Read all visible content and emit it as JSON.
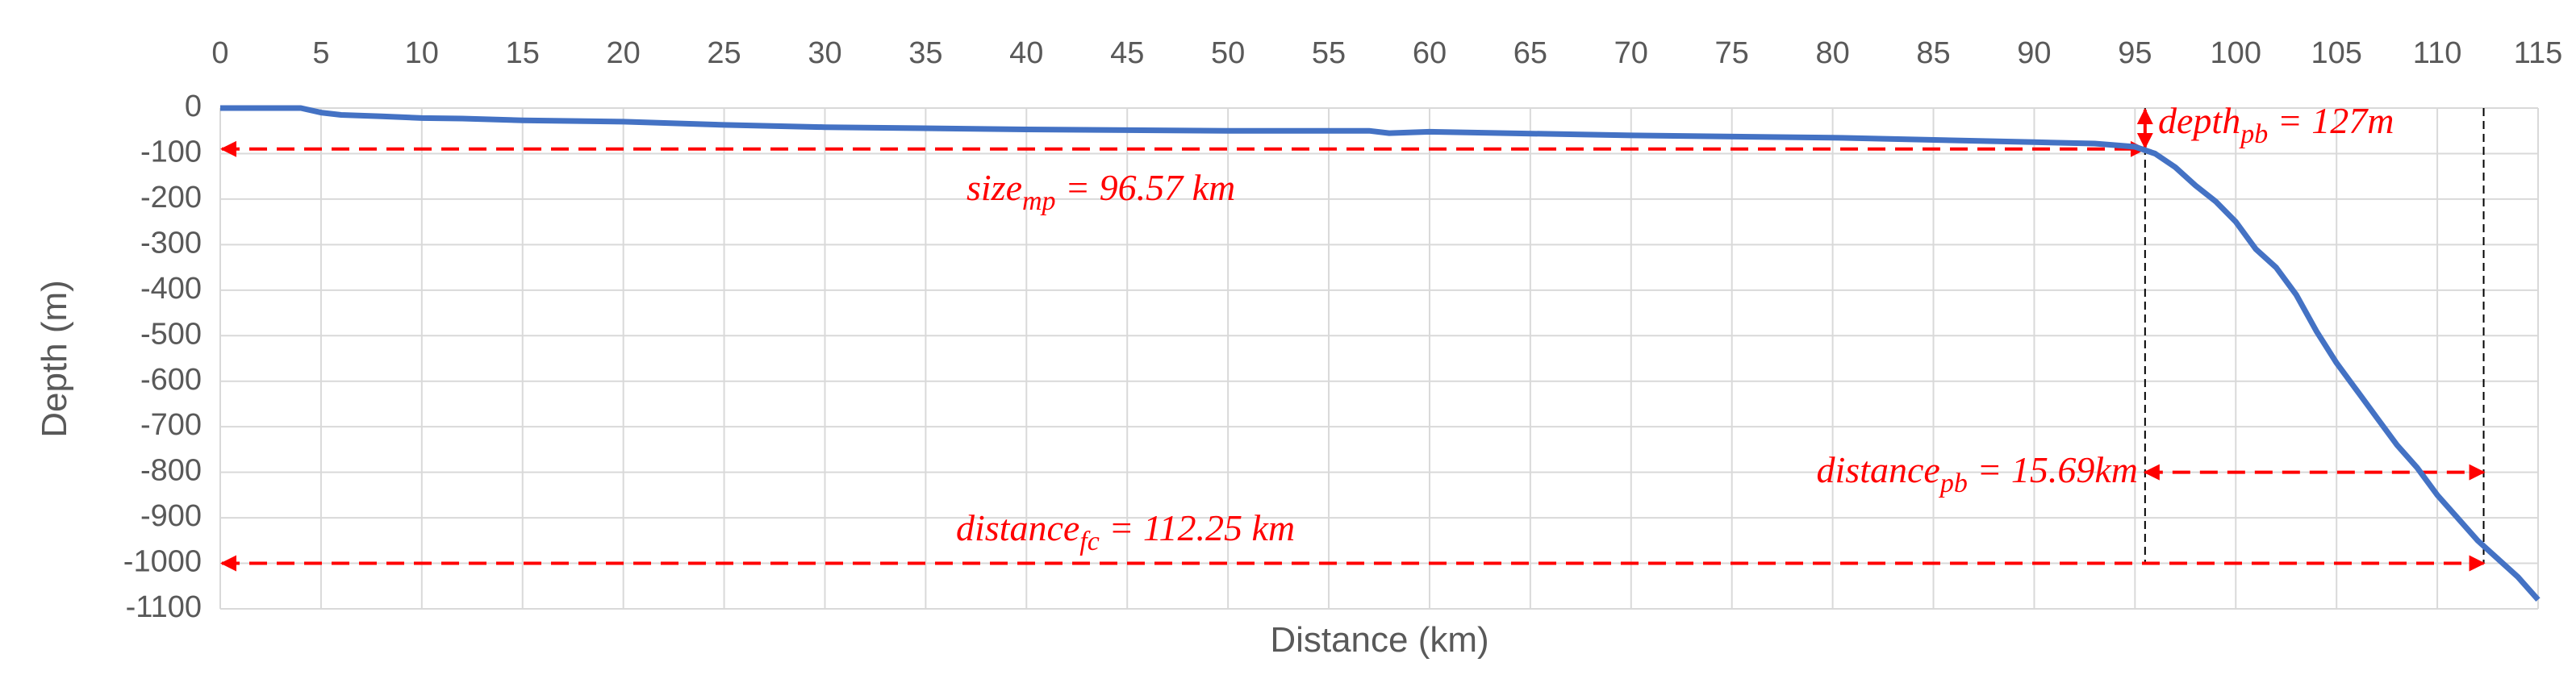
{
  "chart_data": {
    "type": "line",
    "x_label": "Distance (km)",
    "y_label": "Depth (m)",
    "xlim": [
      0,
      115
    ],
    "xticks": [
      0,
      5,
      10,
      15,
      20,
      25,
      30,
      35,
      40,
      45,
      50,
      55,
      60,
      65,
      70,
      75,
      80,
      85,
      90,
      95,
      100,
      105,
      110,
      115
    ],
    "ylim": [
      -1100,
      0
    ],
    "yticks": [
      0,
      -100,
      -200,
      -300,
      -400,
      -500,
      -600,
      -700,
      -800,
      -900,
      -1000,
      -1100
    ],
    "grid": true,
    "series": [
      {
        "color": "#4472c4",
        "x": [
          0,
          4,
          5,
          6,
          8,
          10,
          12,
          15,
          20,
          25,
          30,
          40,
          50,
          57,
          58,
          60,
          70,
          80,
          90,
          93,
          95,
          96,
          97,
          98,
          99,
          100,
          101,
          102,
          103,
          104,
          105,
          106,
          107,
          108,
          109,
          110,
          111,
          112,
          113,
          114,
          115
        ],
        "values": [
          0,
          0,
          -10,
          -15,
          -18,
          -22,
          -23,
          -27,
          -30,
          -37,
          -42,
          -47,
          -50,
          -50,
          -55,
          -52,
          -60,
          -65,
          -75,
          -78,
          -85,
          -100,
          -130,
          -170,
          -205,
          -250,
          -310,
          -350,
          -410,
          -490,
          -560,
          -620,
          -680,
          -740,
          -790,
          -850,
          -900,
          -950,
          -990,
          -1030,
          -1080
        ]
      }
    ],
    "annotations": [
      {
        "base": "size",
        "sub": "mp",
        "text": " = 96.57 km"
      },
      {
        "base": "depth",
        "sub": "pb",
        "text": " = 127m"
      },
      {
        "base": "distance",
        "sub": "pb",
        "text": " = 15.69km"
      },
      {
        "base": "distance",
        "sub": "fc",
        "text": " = 112.25 km"
      }
    ]
  }
}
